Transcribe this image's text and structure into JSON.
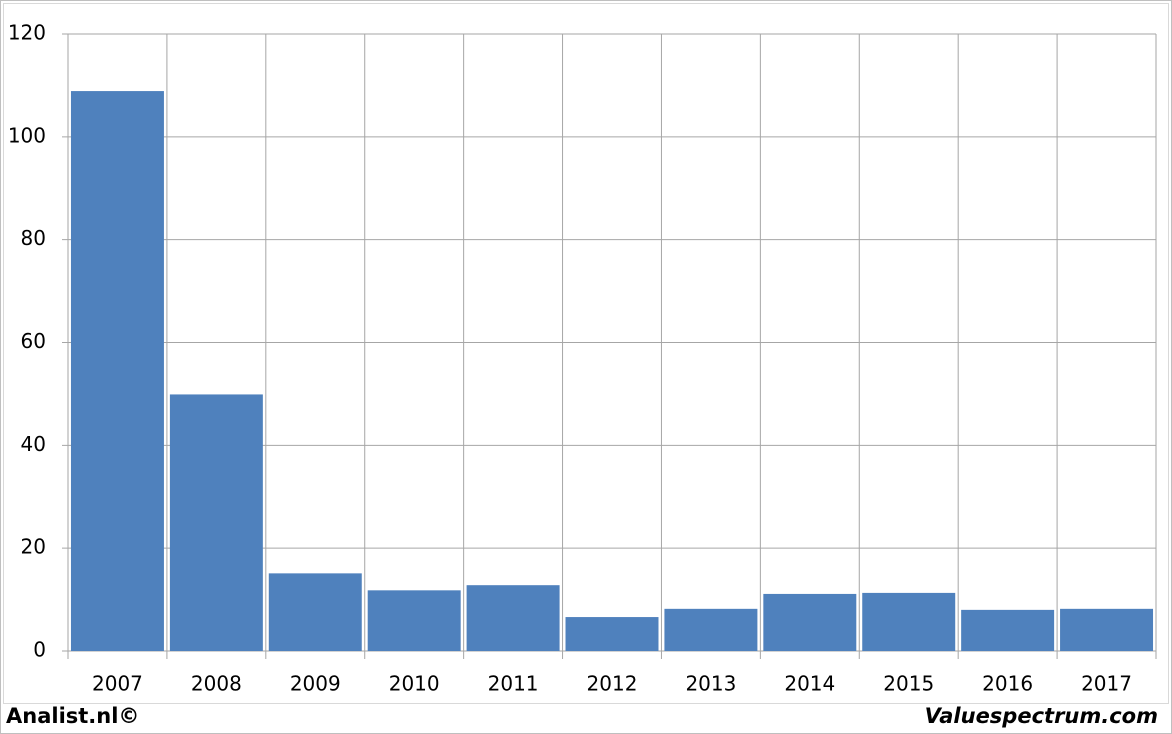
{
  "chart_data": {
    "type": "bar",
    "categories": [
      "2007",
      "2008",
      "2009",
      "2010",
      "2011",
      "2012",
      "2013",
      "2014",
      "2015",
      "2016",
      "2017"
    ],
    "values": [
      108.9,
      49.9,
      15.1,
      11.8,
      12.8,
      6.6,
      8.2,
      11.1,
      11.3,
      8.0,
      8.2
    ],
    "color": "#4f81bd",
    "ylim": [
      0,
      120
    ],
    "yticks": [
      0,
      20,
      40,
      60,
      80,
      100,
      120
    ],
    "grid": true,
    "credits": [
      "Analist.nl©",
      "Valuespectrum.com"
    ]
  }
}
